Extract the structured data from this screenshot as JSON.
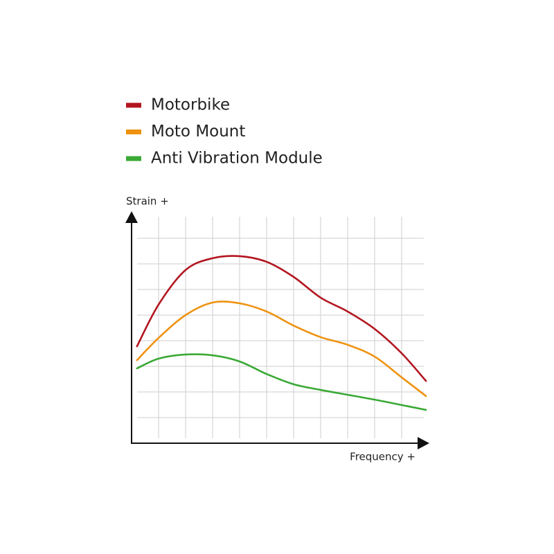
{
  "chart_data": {
    "type": "line",
    "x_label": "Frequency +",
    "y_label": "Strain +",
    "x": [
      0.2,
      1,
      2,
      3,
      4,
      5,
      6,
      7,
      8,
      9,
      10,
      10.9
    ],
    "series": [
      {
        "name": "Motorbike",
        "color": "#b3151f",
        "values": [
          3.78,
          5.41,
          6.76,
          7.22,
          7.3,
          7.08,
          6.49,
          5.68,
          5.14,
          4.46,
          3.51,
          2.43
        ]
      },
      {
        "name": "Moto Mount",
        "color": "#ee9210",
        "values": [
          3.24,
          4.11,
          5.0,
          5.49,
          5.46,
          5.14,
          4.59,
          4.14,
          3.84,
          3.38,
          2.57,
          1.84
        ]
      },
      {
        "name": "Anti Vibration Module",
        "color": "#3aa935",
        "values": [
          2.92,
          3.3,
          3.46,
          3.43,
          3.19,
          2.7,
          2.3,
          2.08,
          1.89,
          1.7,
          1.49,
          1.3
        ]
      }
    ],
    "xlim": [
      0,
      11
    ],
    "ylim": [
      0,
      8.8
    ],
    "xticks": [
      1,
      2,
      3,
      4,
      5,
      6,
      7,
      8,
      9,
      10
    ],
    "yticks": [
      1,
      2,
      3,
      4,
      5,
      6,
      7,
      8
    ],
    "grid": true
  }
}
